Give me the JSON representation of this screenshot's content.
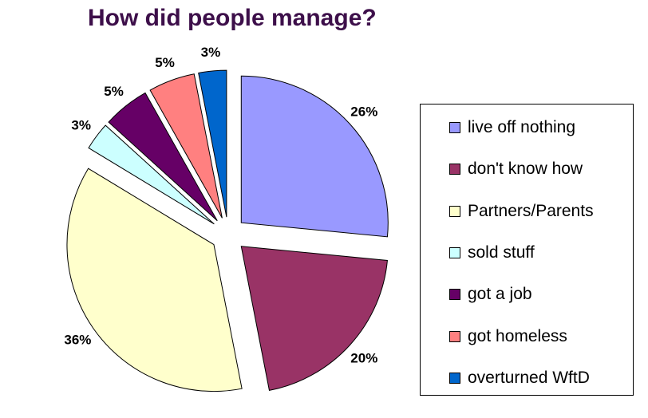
{
  "chart_data": {
    "type": "pie",
    "title": "How did people manage?",
    "exploded": true,
    "legend_position": "right",
    "slices": [
      {
        "label": "live off nothing",
        "value": 26,
        "value_label": "26%",
        "color": "#9999ff"
      },
      {
        "label": "don't know how",
        "value": 20,
        "value_label": "20%",
        "color": "#993366"
      },
      {
        "label": "Partners/Parents",
        "value": 36,
        "value_label": "36%",
        "color": "#ffffcc"
      },
      {
        "label": "sold stuff",
        "value": 3,
        "value_label": "3%",
        "color": "#ccffff"
      },
      {
        "label": "got a job",
        "value": 5,
        "value_label": "5%",
        "color": "#660066"
      },
      {
        "label": "got homeless",
        "value": 5,
        "value_label": "5%",
        "color": "#ff8080"
      },
      {
        "label": "overturned WftD",
        "value": 3,
        "value_label": "3%",
        "color": "#0066cc"
      }
    ]
  }
}
